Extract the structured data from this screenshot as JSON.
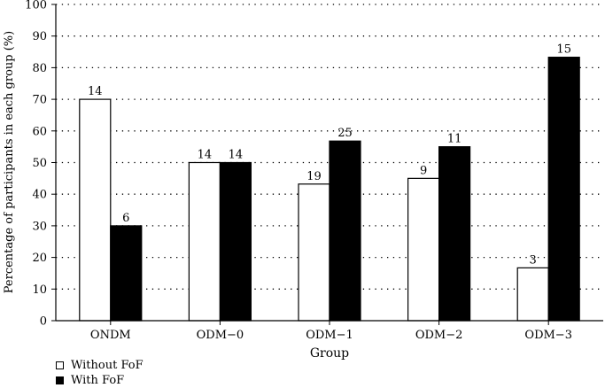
{
  "chart_data": {
    "type": "bar",
    "title": "",
    "xlabel": "Group",
    "ylabel": "Percentage of participants in each group (%)",
    "ylim": [
      0,
      100
    ],
    "yticks": [
      0,
      10,
      20,
      30,
      40,
      50,
      60,
      70,
      80,
      90,
      100
    ],
    "grid": true,
    "legend_position": "bottom-left",
    "categories": [
      "ONDM",
      "ODM−0",
      "ODM−1",
      "ODM−2",
      "ODM−3"
    ],
    "series": [
      {
        "name": "Without FoF",
        "fill": "#ffffff",
        "values": [
          70,
          50,
          43.2,
          45,
          16.7
        ],
        "labels": [
          "14",
          "14",
          "19",
          "9",
          "3"
        ]
      },
      {
        "name": "With FoF",
        "fill": "#000000",
        "values": [
          30,
          50,
          56.8,
          55,
          83.3
        ],
        "labels": [
          "6",
          "14",
          "25",
          "11",
          "15"
        ]
      }
    ]
  }
}
